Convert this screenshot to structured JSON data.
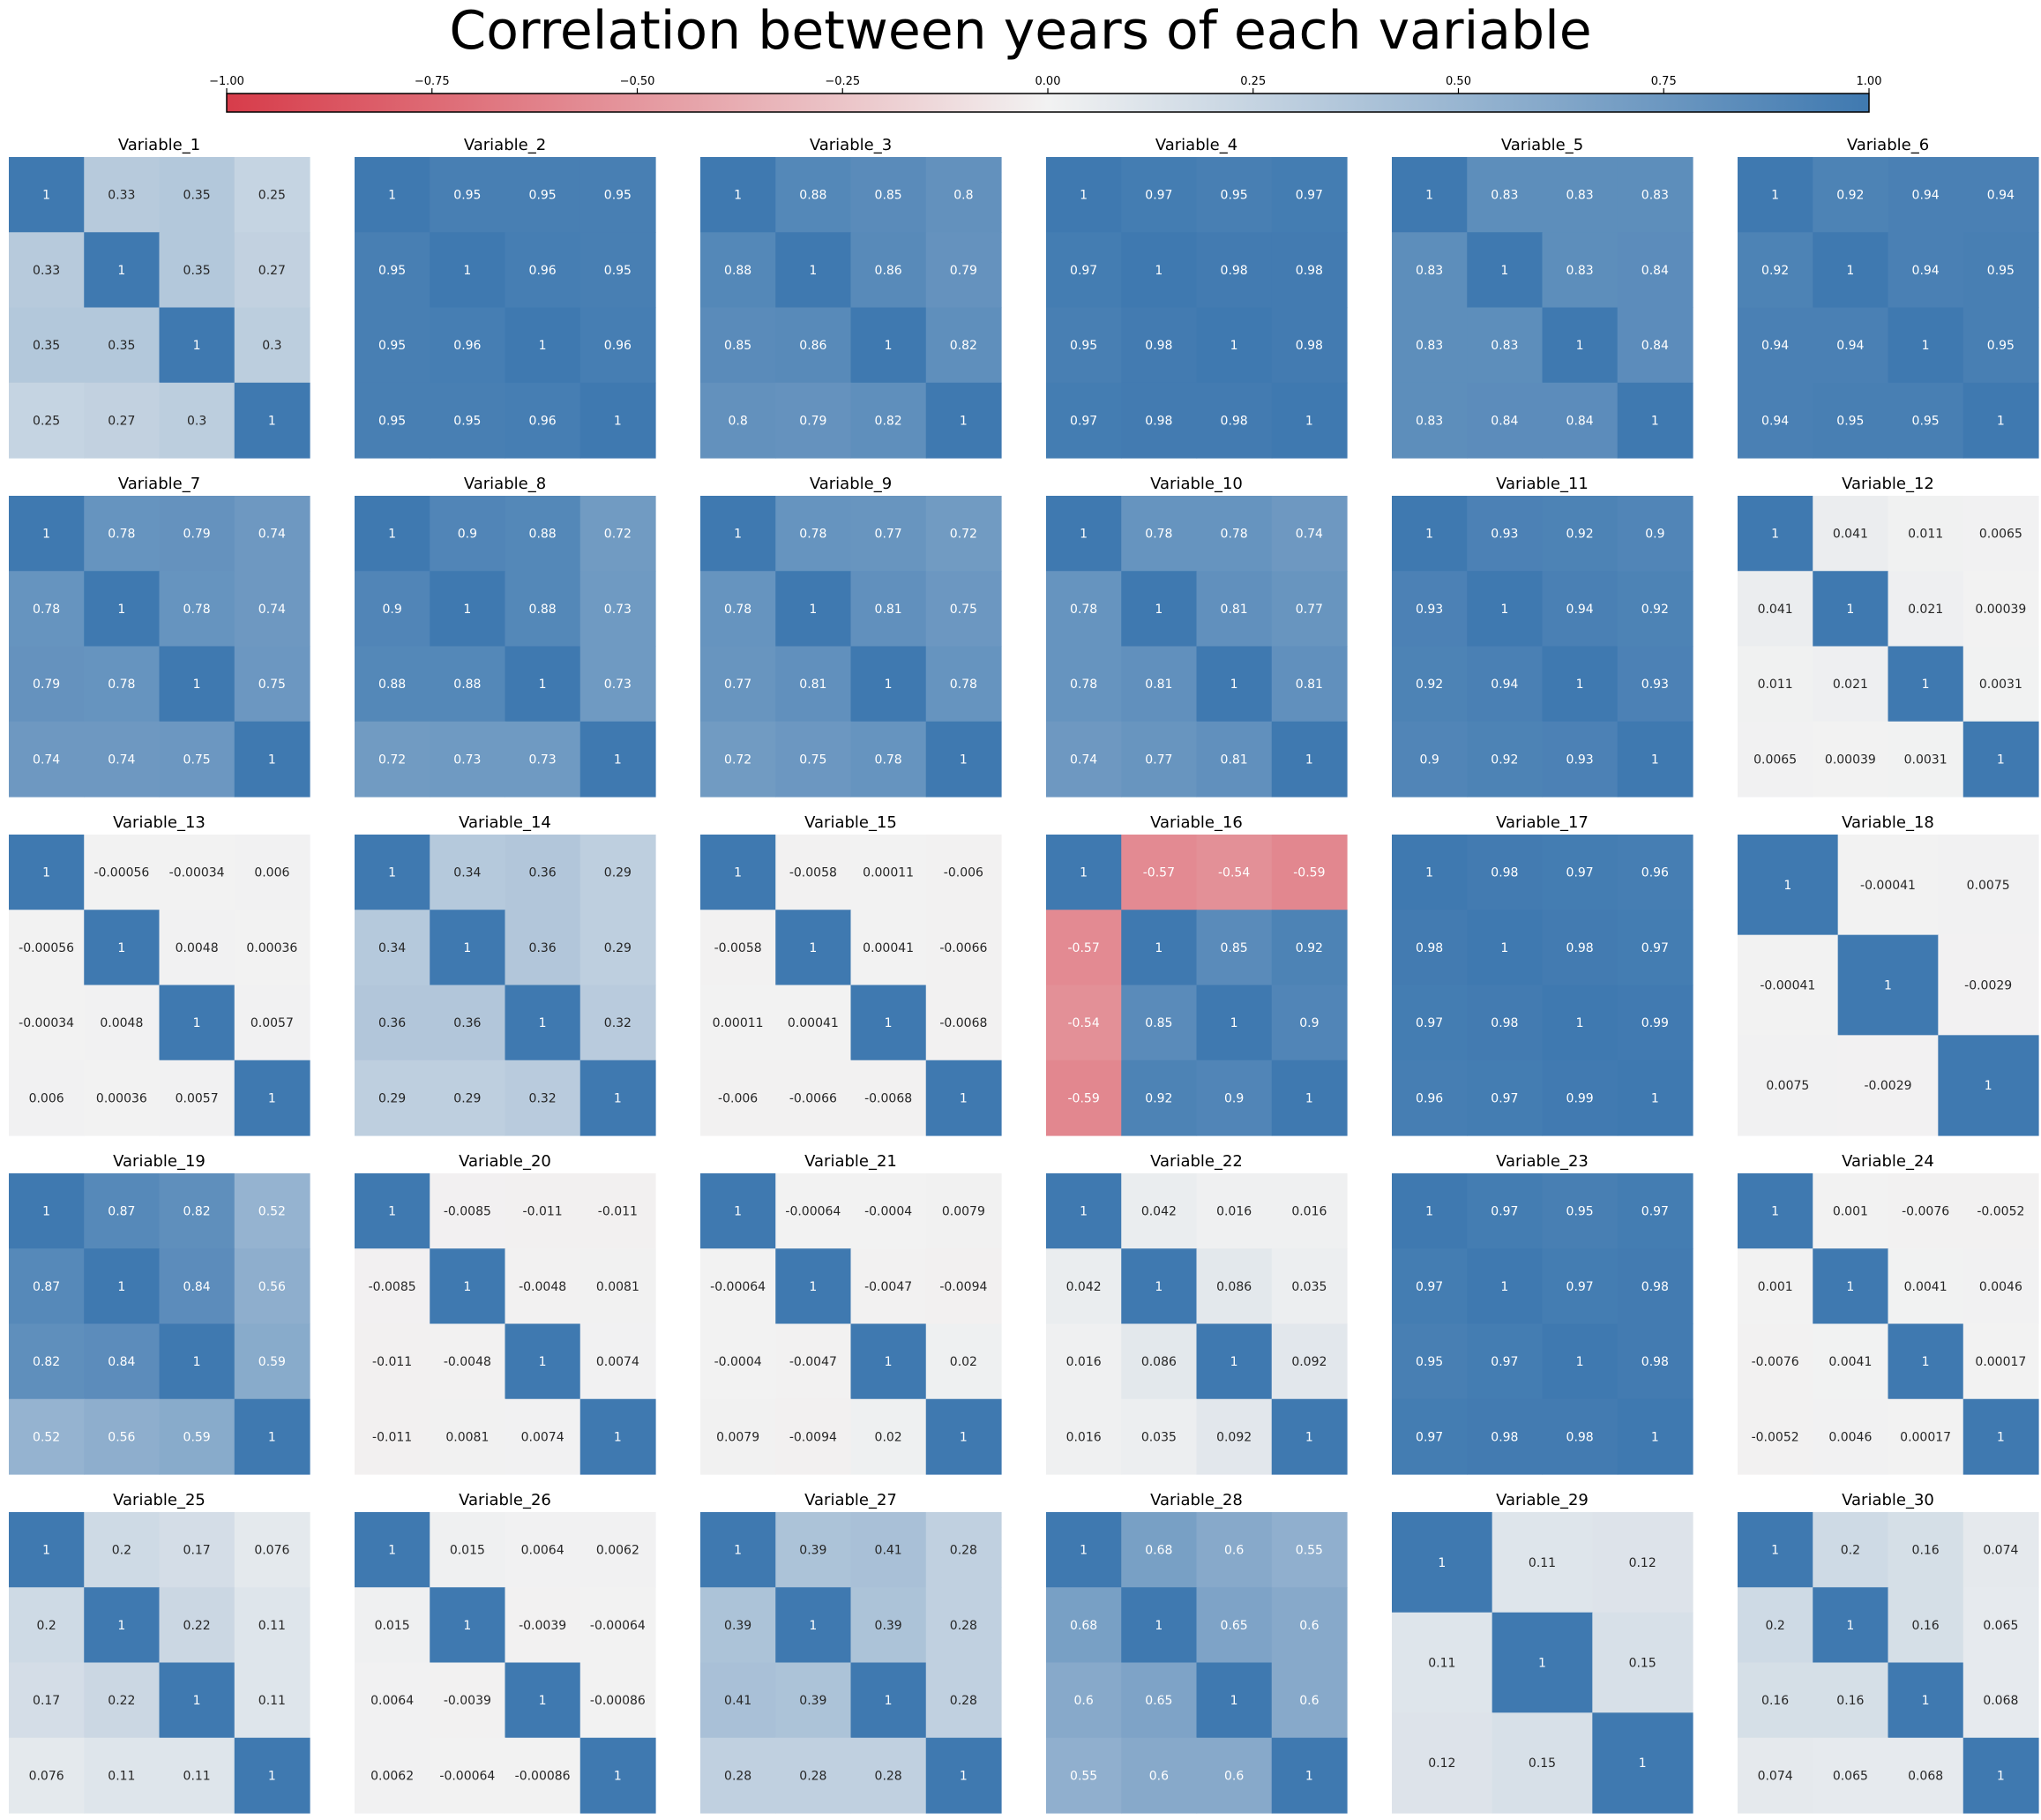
{
  "title": "Correlation between years of each variable",
  "colors": {
    "negative": "#d73c4a",
    "neutral": "#f2f2f2",
    "positive": "#3f79b0",
    "text_dark": "#262626",
    "text_light": "#ffffff"
  },
  "colorbar": {
    "min": -1.0,
    "max": 1.0,
    "ticks": [
      "-1.00",
      "-0.75",
      "-0.50",
      "-0.25",
      "0.00",
      "0.25",
      "0.50",
      "0.75",
      "1.00"
    ]
  },
  "chart_data": [
    {
      "type": "heatmap",
      "title": "Variable_1",
      "matrix": [
        [
          1,
          0.33,
          0.35,
          0.25
        ],
        [
          0.33,
          1,
          0.35,
          0.27
        ],
        [
          0.35,
          0.35,
          1,
          0.3
        ],
        [
          0.25,
          0.27,
          0.3,
          1
        ]
      ]
    },
    {
      "type": "heatmap",
      "title": "Variable_2",
      "matrix": [
        [
          1,
          0.95,
          0.95,
          0.95
        ],
        [
          0.95,
          1,
          0.96,
          0.95
        ],
        [
          0.95,
          0.96,
          1,
          0.96
        ],
        [
          0.95,
          0.95,
          0.96,
          1
        ]
      ]
    },
    {
      "type": "heatmap",
      "title": "Variable_3",
      "matrix": [
        [
          1,
          0.88,
          0.85,
          0.8
        ],
        [
          0.88,
          1,
          0.86,
          0.79
        ],
        [
          0.85,
          0.86,
          1,
          0.82
        ],
        [
          0.8,
          0.79,
          0.82,
          1
        ]
      ]
    },
    {
      "type": "heatmap",
      "title": "Variable_4",
      "matrix": [
        [
          1,
          0.97,
          0.95,
          0.97
        ],
        [
          0.97,
          1,
          0.98,
          0.98
        ],
        [
          0.95,
          0.98,
          1,
          0.98
        ],
        [
          0.97,
          0.98,
          0.98,
          1
        ]
      ]
    },
    {
      "type": "heatmap",
      "title": "Variable_5",
      "matrix": [
        [
          1,
          0.83,
          0.83,
          0.83
        ],
        [
          0.83,
          1,
          0.83,
          0.84
        ],
        [
          0.83,
          0.83,
          1,
          0.84
        ],
        [
          0.83,
          0.84,
          0.84,
          1
        ]
      ]
    },
    {
      "type": "heatmap",
      "title": "Variable_6",
      "matrix": [
        [
          1,
          0.92,
          0.94,
          0.94
        ],
        [
          0.92,
          1,
          0.94,
          0.95
        ],
        [
          0.94,
          0.94,
          1,
          0.95
        ],
        [
          0.94,
          0.95,
          0.95,
          1
        ]
      ]
    },
    {
      "type": "heatmap",
      "title": "Variable_7",
      "matrix": [
        [
          1,
          0.78,
          0.79,
          0.74
        ],
        [
          0.78,
          1,
          0.78,
          0.74
        ],
        [
          0.79,
          0.78,
          1,
          0.75
        ],
        [
          0.74,
          0.74,
          0.75,
          1
        ]
      ]
    },
    {
      "type": "heatmap",
      "title": "Variable_8",
      "matrix": [
        [
          1,
          0.9,
          0.88,
          0.72
        ],
        [
          0.9,
          1,
          0.88,
          0.73
        ],
        [
          0.88,
          0.88,
          1,
          0.73
        ],
        [
          0.72,
          0.73,
          0.73,
          1
        ]
      ]
    },
    {
      "type": "heatmap",
      "title": "Variable_9",
      "matrix": [
        [
          1,
          0.78,
          0.77,
          0.72
        ],
        [
          0.78,
          1,
          0.81,
          0.75
        ],
        [
          0.77,
          0.81,
          1,
          0.78
        ],
        [
          0.72,
          0.75,
          0.78,
          1
        ]
      ]
    },
    {
      "type": "heatmap",
      "title": "Variable_10",
      "matrix": [
        [
          1,
          0.78,
          0.78,
          0.74
        ],
        [
          0.78,
          1,
          0.81,
          0.77
        ],
        [
          0.78,
          0.81,
          1,
          0.81
        ],
        [
          0.74,
          0.77,
          0.81,
          1
        ]
      ]
    },
    {
      "type": "heatmap",
      "title": "Variable_11",
      "matrix": [
        [
          1,
          0.93,
          0.92,
          0.9
        ],
        [
          0.93,
          1,
          0.94,
          0.92
        ],
        [
          0.92,
          0.94,
          1,
          0.93
        ],
        [
          0.9,
          0.92,
          0.93,
          1
        ]
      ]
    },
    {
      "type": "heatmap",
      "title": "Variable_12",
      "matrix": [
        [
          1,
          0.041,
          0.011,
          0.0065
        ],
        [
          0.041,
          1,
          0.021,
          0.00039
        ],
        [
          0.011,
          0.021,
          1,
          0.0031
        ],
        [
          0.0065,
          0.00039,
          0.0031,
          1
        ]
      ]
    },
    {
      "type": "heatmap",
      "title": "Variable_13",
      "matrix": [
        [
          1,
          -0.00056,
          -0.00034,
          0.006
        ],
        [
          -0.00056,
          1,
          0.0048,
          0.00036
        ],
        [
          -0.00034,
          0.0048,
          1,
          0.0057
        ],
        [
          0.006,
          0.00036,
          0.0057,
          1
        ]
      ]
    },
    {
      "type": "heatmap",
      "title": "Variable_14",
      "matrix": [
        [
          1,
          0.34,
          0.36,
          0.29
        ],
        [
          0.34,
          1,
          0.36,
          0.29
        ],
        [
          0.36,
          0.36,
          1,
          0.32
        ],
        [
          0.29,
          0.29,
          0.32,
          1
        ]
      ]
    },
    {
      "type": "heatmap",
      "title": "Variable_15",
      "matrix": [
        [
          1,
          -0.0058,
          0.00011,
          -0.006
        ],
        [
          -0.0058,
          1,
          0.00041,
          -0.0066
        ],
        [
          0.00011,
          0.00041,
          1,
          -0.0068
        ],
        [
          -0.006,
          -0.0066,
          -0.0068,
          1
        ]
      ]
    },
    {
      "type": "heatmap",
      "title": "Variable_16",
      "matrix": [
        [
          1,
          -0.57,
          -0.54,
          -0.59
        ],
        [
          -0.57,
          1,
          0.85,
          0.92
        ],
        [
          -0.54,
          0.85,
          1,
          0.9
        ],
        [
          -0.59,
          0.92,
          0.9,
          1
        ]
      ]
    },
    {
      "type": "heatmap",
      "title": "Variable_17",
      "matrix": [
        [
          1,
          0.98,
          0.97,
          0.96
        ],
        [
          0.98,
          1,
          0.98,
          0.97
        ],
        [
          0.97,
          0.98,
          1,
          0.99
        ],
        [
          0.96,
          0.97,
          0.99,
          1
        ]
      ]
    },
    {
      "type": "heatmap",
      "title": "Variable_18",
      "matrix": [
        [
          1,
          -0.00041,
          0.0075
        ],
        [
          -0.00041,
          1,
          -0.0029
        ],
        [
          0.0075,
          -0.0029,
          1
        ]
      ]
    },
    {
      "type": "heatmap",
      "title": "Variable_19",
      "matrix": [
        [
          1,
          0.87,
          0.82,
          0.52
        ],
        [
          0.87,
          1,
          0.84,
          0.56
        ],
        [
          0.82,
          0.84,
          1,
          0.59
        ],
        [
          0.52,
          0.56,
          0.59,
          1
        ]
      ]
    },
    {
      "type": "heatmap",
      "title": "Variable_20",
      "matrix": [
        [
          1,
          -0.0085,
          -0.011,
          -0.011
        ],
        [
          -0.0085,
          1,
          -0.0048,
          0.0081
        ],
        [
          -0.011,
          -0.0048,
          1,
          0.0074
        ],
        [
          -0.011,
          0.0081,
          0.0074,
          1
        ]
      ]
    },
    {
      "type": "heatmap",
      "title": "Variable_21",
      "matrix": [
        [
          1,
          -0.00064,
          -0.0004,
          0.0079
        ],
        [
          -0.00064,
          1,
          -0.0047,
          -0.0094
        ],
        [
          -0.0004,
          -0.0047,
          1,
          0.02
        ],
        [
          0.0079,
          -0.0094,
          0.02,
          1
        ]
      ]
    },
    {
      "type": "heatmap",
      "title": "Variable_22",
      "matrix": [
        [
          1,
          0.042,
          0.016,
          0.016
        ],
        [
          0.042,
          1,
          0.086,
          0.035
        ],
        [
          0.016,
          0.086,
          1,
          0.092
        ],
        [
          0.016,
          0.035,
          0.092,
          1
        ]
      ]
    },
    {
      "type": "heatmap",
      "title": "Variable_23",
      "matrix": [
        [
          1,
          0.97,
          0.95,
          0.97
        ],
        [
          0.97,
          1,
          0.97,
          0.98
        ],
        [
          0.95,
          0.97,
          1,
          0.98
        ],
        [
          0.97,
          0.98,
          0.98,
          1
        ]
      ]
    },
    {
      "type": "heatmap",
      "title": "Variable_24",
      "matrix": [
        [
          1,
          0.001,
          -0.0076,
          -0.0052
        ],
        [
          0.001,
          1,
          0.0041,
          0.0046
        ],
        [
          -0.0076,
          0.0041,
          1,
          0.00017
        ],
        [
          -0.0052,
          0.0046,
          0.00017,
          1
        ]
      ]
    },
    {
      "type": "heatmap",
      "title": "Variable_25",
      "matrix": [
        [
          1,
          0.2,
          0.17,
          0.076
        ],
        [
          0.2,
          1,
          0.22,
          0.11
        ],
        [
          0.17,
          0.22,
          1,
          0.11
        ],
        [
          0.076,
          0.11,
          0.11,
          1
        ]
      ]
    },
    {
      "type": "heatmap",
      "title": "Variable_26",
      "matrix": [
        [
          1,
          0.015,
          0.0064,
          0.0062
        ],
        [
          0.015,
          1,
          -0.0039,
          -0.00064
        ],
        [
          0.0064,
          -0.0039,
          1,
          -0.00086
        ],
        [
          0.0062,
          -0.00064,
          -0.00086,
          1
        ]
      ]
    },
    {
      "type": "heatmap",
      "title": "Variable_27",
      "matrix": [
        [
          1,
          0.39,
          0.41,
          0.28
        ],
        [
          0.39,
          1,
          0.39,
          0.28
        ],
        [
          0.41,
          0.39,
          1,
          0.28
        ],
        [
          0.28,
          0.28,
          0.28,
          1
        ]
      ]
    },
    {
      "type": "heatmap",
      "title": "Variable_28",
      "matrix": [
        [
          1,
          0.68,
          0.6,
          0.55
        ],
        [
          0.68,
          1,
          0.65,
          0.6
        ],
        [
          0.6,
          0.65,
          1,
          0.6
        ],
        [
          0.55,
          0.6,
          0.6,
          1
        ]
      ]
    },
    {
      "type": "heatmap",
      "title": "Variable_29",
      "matrix": [
        [
          1,
          0.11,
          0.12
        ],
        [
          0.11,
          1,
          0.15
        ],
        [
          0.12,
          0.15,
          1
        ]
      ]
    },
    {
      "type": "heatmap",
      "title": "Variable_30",
      "matrix": [
        [
          1,
          0.2,
          0.16,
          0.074
        ],
        [
          0.2,
          1,
          0.16,
          0.065
        ],
        [
          0.16,
          0.16,
          1,
          0.068
        ],
        [
          0.074,
          0.065,
          0.068,
          1
        ]
      ]
    }
  ]
}
